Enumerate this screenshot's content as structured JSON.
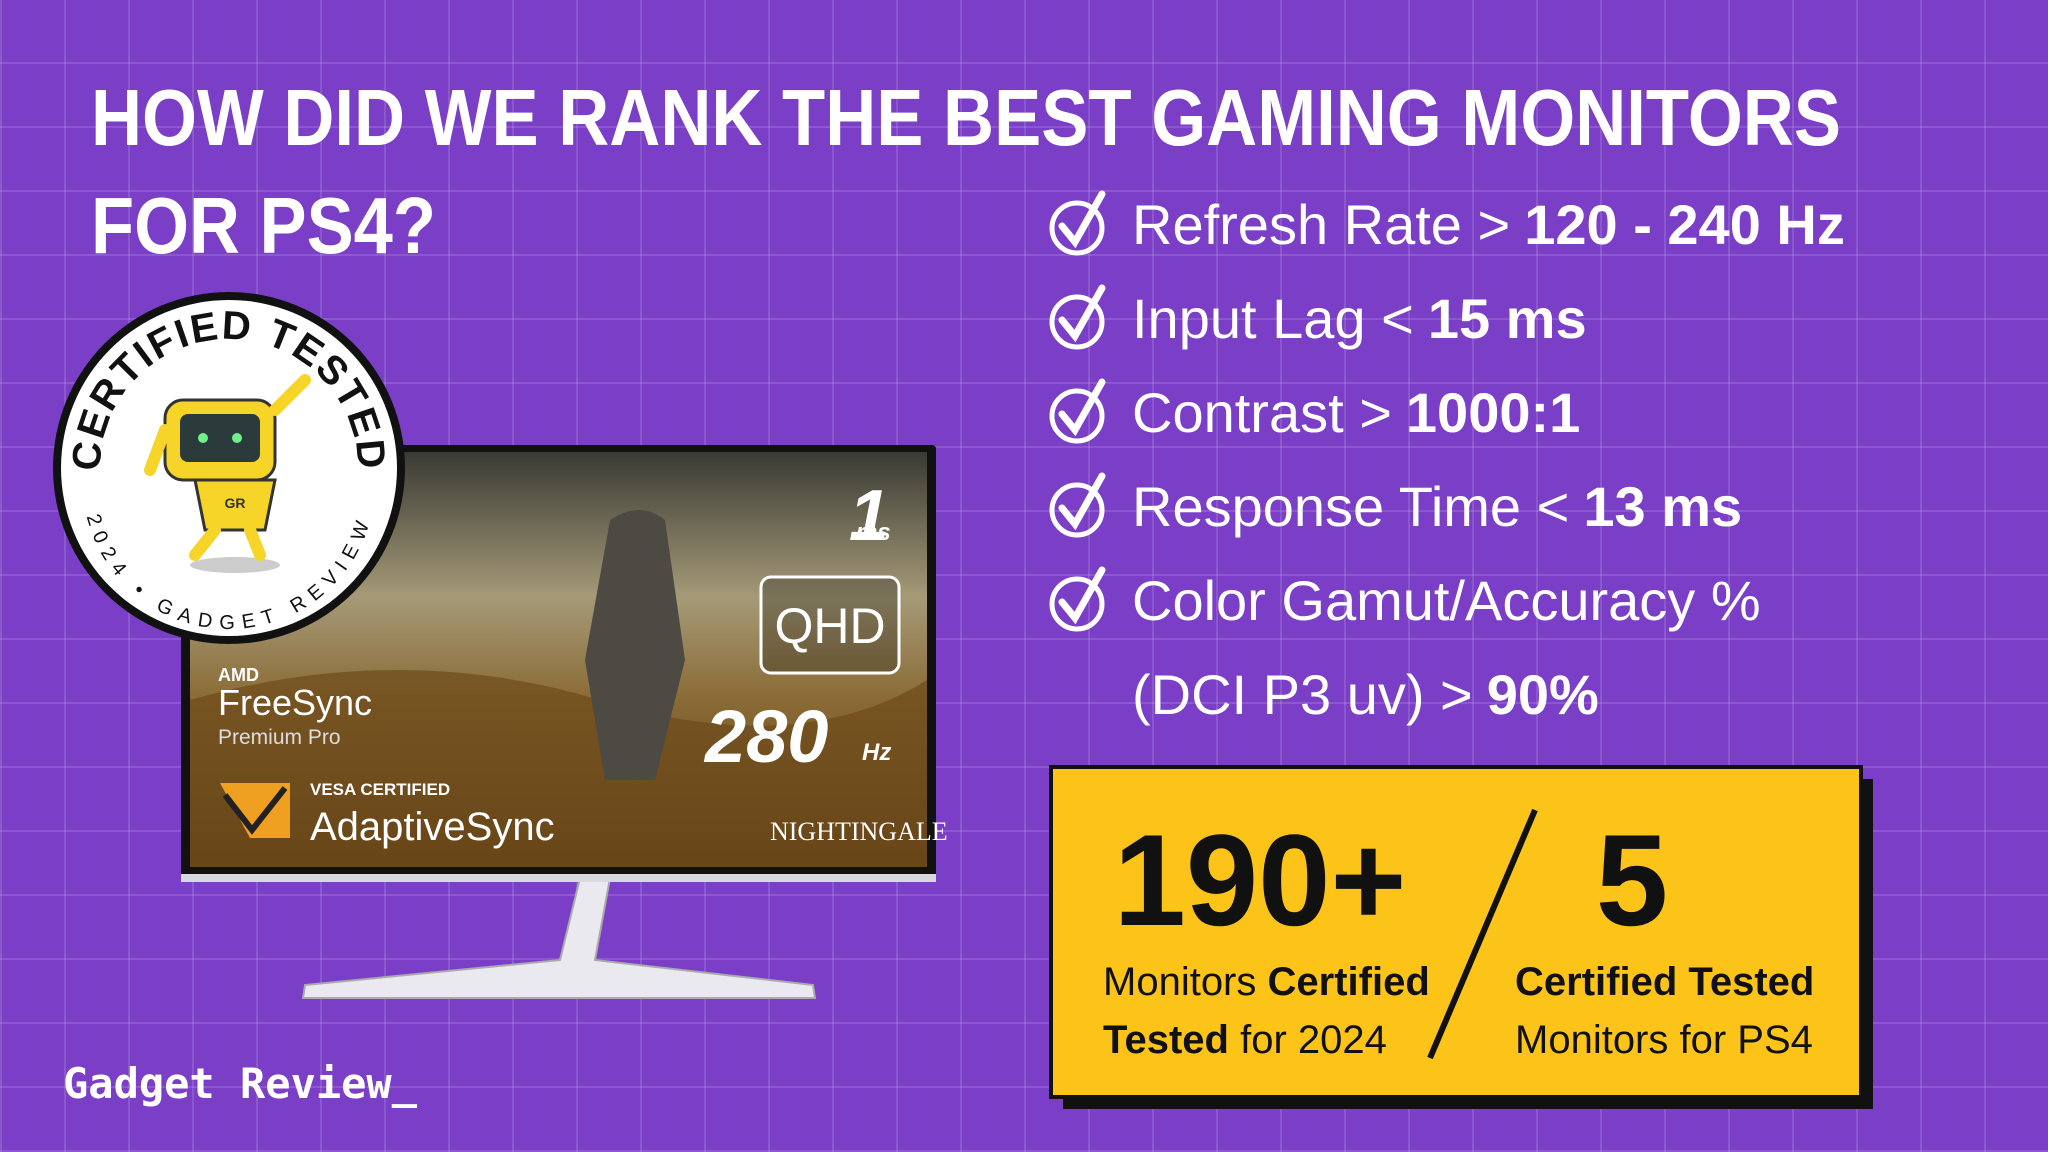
{
  "title": [
    "HOW DID WE RANK THE BEST GAMING MONITORS",
    "FOR PS4?"
  ],
  "badge": {
    "top": "CERTIFIED TESTED",
    "bottom": "2024 • GADGET REVIEW",
    "robot": "GR"
  },
  "monitor": {
    "response": "1",
    "response_unit": "ms",
    "resolution": "QHD",
    "refresh": "280",
    "refresh_unit": "Hz",
    "amd": "AMD",
    "freesync": "FreeSync",
    "freesync_tier": "Premium Pro",
    "vesa": "VESA CERTIFIED",
    "adaptive": "AdaptiveSync",
    "game": "NIGHTINGALE"
  },
  "criteria": [
    {
      "lines": [
        "Refresh Rate >"
      ],
      "value": "120 - 240 Hz"
    },
    {
      "lines": [
        "Input Lag <"
      ],
      "value": "15 ms"
    },
    {
      "lines": [
        "Contrast >"
      ],
      "value": "1000:1"
    },
    {
      "lines": [
        "Response Time <"
      ],
      "value": "13 ms"
    },
    {
      "lines": [
        "Color Gamut/Accuracy %",
        "(DCI P3 uv) >"
      ],
      "value": "90%"
    }
  ],
  "stats": [
    {
      "number": "190+",
      "lines": [
        [
          {
            "text": "Monitors ",
            "bold": false
          },
          {
            "text": "Certified",
            "bold": true
          }
        ],
        [
          {
            "text": "Tested",
            "bold": true
          },
          {
            "text": " for 2024",
            "bold": false
          }
        ]
      ]
    },
    {
      "number": "5",
      "lines": [
        [
          {
            "text": "Certified Tested",
            "bold": true
          }
        ],
        [
          {
            "text": "Monitors for PS4",
            "bold": false
          }
        ]
      ]
    }
  ],
  "logo": "Gadget Review_"
}
